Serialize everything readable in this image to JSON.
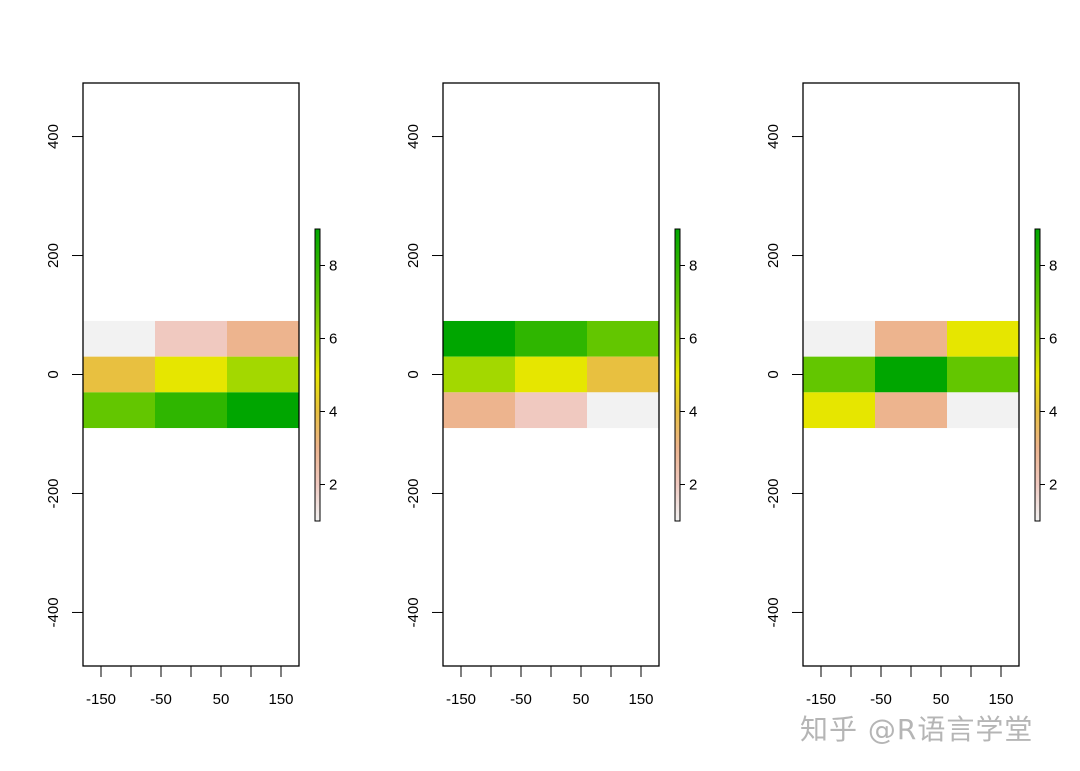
{
  "watermark": "知乎 @R语言学堂",
  "palette": {
    "1": "#F2F2F2",
    "2": "#F0C9C0",
    "3": "#EDB48E",
    "4": "#E8C040",
    "5": "#E6E600",
    "6": "#A3D800",
    "7": "#63C600",
    "8": "#2FB600",
    "9": "#00A600"
  },
  "legend": {
    "range": [
      1,
      9
    ],
    "ticks": [
      2,
      4,
      6,
      8
    ],
    "gradient": [
      "#F2F2F2",
      "#F0C9C0",
      "#EDB48E",
      "#E8C040",
      "#E6E600",
      "#A3D800",
      "#63C600",
      "#2FB600",
      "#00A600"
    ]
  },
  "chart_data": [
    {
      "type": "heatmap",
      "title": "",
      "xlim": [
        -180,
        180
      ],
      "ylim": [
        -490,
        490
      ],
      "xticks": [
        -150,
        -100,
        -50,
        0,
        50,
        100,
        150
      ],
      "xtick_labels": [
        "-150",
        "",
        "-50",
        "",
        "50",
        "",
        "150"
      ],
      "yticks": [
        -400,
        -200,
        0,
        200,
        400
      ],
      "x_edges": [
        -180,
        -60,
        60,
        180
      ],
      "y_edges": [
        90,
        30,
        -30,
        -90
      ],
      "values": [
        [
          1,
          2,
          3
        ],
        [
          4,
          5,
          6
        ],
        [
          7,
          8,
          9
        ]
      ]
    },
    {
      "type": "heatmap",
      "title": "",
      "xlim": [
        -180,
        180
      ],
      "ylim": [
        -490,
        490
      ],
      "xticks": [
        -150,
        -100,
        -50,
        0,
        50,
        100,
        150
      ],
      "xtick_labels": [
        "-150",
        "",
        "-50",
        "",
        "50",
        "",
        "150"
      ],
      "yticks": [
        -400,
        -200,
        0,
        200,
        400
      ],
      "x_edges": [
        -180,
        -60,
        60,
        180
      ],
      "y_edges": [
        90,
        30,
        -30,
        -90
      ],
      "values": [
        [
          9,
          8,
          7
        ],
        [
          6,
          5,
          4
        ],
        [
          3,
          2,
          1
        ]
      ]
    },
    {
      "type": "heatmap",
      "title": "",
      "xlim": [
        -180,
        180
      ],
      "ylim": [
        -490,
        490
      ],
      "xticks": [
        -150,
        -100,
        -50,
        0,
        50,
        100,
        150
      ],
      "xtick_labels": [
        "-150",
        "",
        "-50",
        "",
        "50",
        "",
        "150"
      ],
      "yticks": [
        -400,
        -200,
        0,
        200,
        400
      ],
      "x_edges": [
        -180,
        -60,
        60,
        180
      ],
      "y_edges": [
        90,
        30,
        -30,
        -90
      ],
      "values": [
        [
          1,
          3,
          5
        ],
        [
          7,
          9,
          7
        ],
        [
          5,
          3,
          1
        ]
      ]
    }
  ]
}
